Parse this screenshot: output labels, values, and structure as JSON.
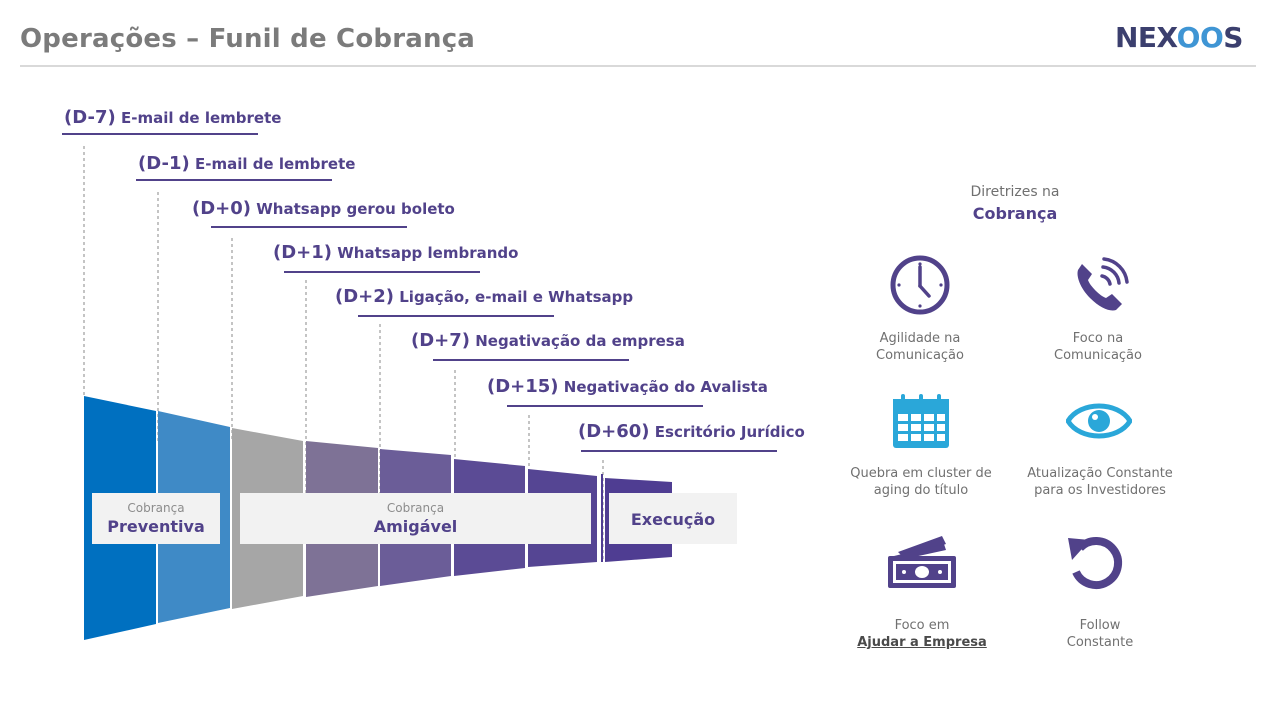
{
  "header": {
    "title": "Operações – Funil de Cobrança",
    "logo_a": "NEX",
    "logo_b": "OO",
    "logo_c": "S"
  },
  "funnel": {
    "steps": [
      {
        "code": "(D-7)",
        "label": "E-mail de lembrete"
      },
      {
        "code": "(D-1)",
        "label": "E-mail de lembrete"
      },
      {
        "code": "(D+0)",
        "label": "Whatsapp gerou boleto"
      },
      {
        "code": "(D+1)",
        "label": "Whatsapp lembrando"
      },
      {
        "code": "(D+2)",
        "label": "Ligação, e-mail e Whatsapp"
      },
      {
        "code": "(D+7)",
        "label": "Negativação da empresa"
      },
      {
        "code": "(D+15)",
        "label": "Negativação do Avalista"
      },
      {
        "code": "(D+60)",
        "label": "Escritório Jurídico"
      }
    ],
    "segment_colors": [
      "#0070c0",
      "#3f8ac6",
      "#a6a6a6",
      "#7e7296",
      "#6b5d98",
      "#5b4b95",
      "#554593",
      "#4f3d92",
      "#4f3d92"
    ],
    "phases": {
      "preventiva": {
        "small": "Cobrança",
        "big": "Preventiva"
      },
      "amigavel": {
        "small": "Cobrança",
        "big": "Amigável"
      },
      "execucao": {
        "big": "Execução"
      }
    }
  },
  "diretrizes": {
    "title_l1": "Diretrizes na",
    "title_l2": "Cobrança",
    "items": [
      {
        "icon": "clock-icon",
        "l1": "Agilidade  na",
        "l2": "Comunicação"
      },
      {
        "icon": "phone-icon",
        "l1": "Foco na",
        "l2": "Comunicação"
      },
      {
        "icon": "calendar-icon",
        "l1": "Quebra em cluster de",
        "l2": "aging do título"
      },
      {
        "icon": "eye-icon",
        "l1": "Atualização  Constante",
        "l2": "para os Investidores"
      },
      {
        "icon": "money-icon",
        "l1": "Foco em",
        "l2": "Ajudar a Empresa"
      },
      {
        "icon": "refresh-icon",
        "l1": "Follow",
        "l2": "Constante"
      }
    ],
    "accent": "#51428a",
    "icon_blue": "#2aa7d9"
  }
}
